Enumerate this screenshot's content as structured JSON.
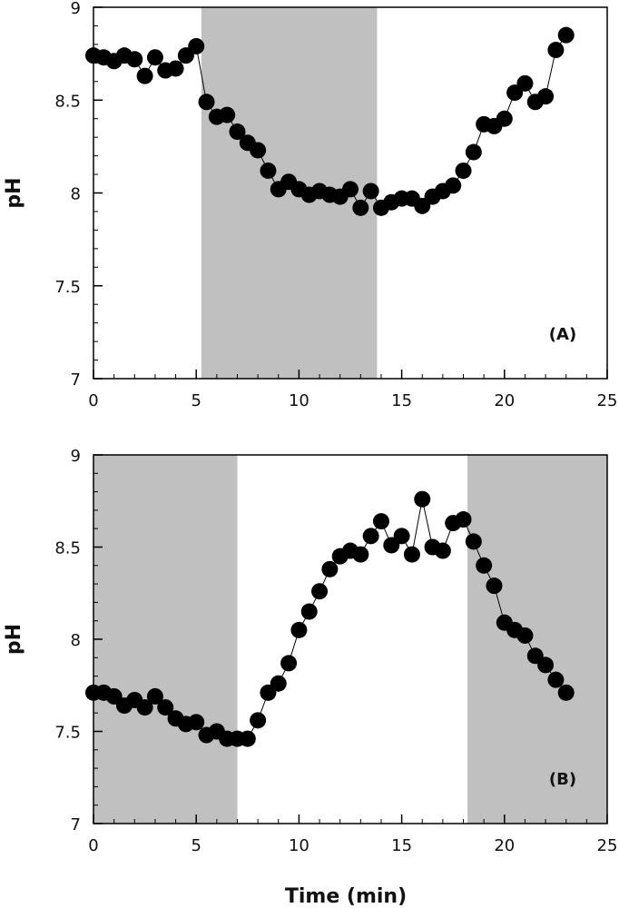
{
  "chart_data": [
    {
      "type": "scatter",
      "panel_label": "(A)",
      "xlabel": "",
      "ylabel": "pH",
      "xlim": [
        0,
        25
      ],
      "ylim": [
        7,
        9
      ],
      "xticks": [
        "0",
        "5",
        "10",
        "15",
        "20",
        "25"
      ],
      "yticks": [
        "7",
        "7.5",
        "8",
        "8.5",
        "9"
      ],
      "shaded_x_ranges": [
        [
          5.25,
          13.8
        ]
      ],
      "series": [
        {
          "x": [
            0,
            0.5,
            1,
            1.5,
            2,
            2.5,
            3,
            3.5,
            4,
            4.5,
            5,
            5.5,
            6,
            6.5,
            7,
            7.5,
            8,
            8.5,
            9,
            9.5,
            10,
            10.5,
            11,
            11.5,
            12,
            12.5,
            13,
            13.5,
            14,
            14.5,
            15,
            15.5,
            16,
            16.5,
            17,
            17.5,
            18,
            18.5,
            19,
            19.5,
            20,
            20.5,
            21,
            21.5,
            22,
            22.5,
            23
          ],
          "y": [
            8.74,
            8.73,
            8.71,
            8.74,
            8.72,
            8.63,
            8.73,
            8.66,
            8.67,
            8.74,
            8.79,
            8.49,
            8.41,
            8.42,
            8.33,
            8.27,
            8.23,
            8.12,
            8.02,
            8.06,
            8.02,
            7.99,
            8.01,
            7.99,
            7.98,
            8.02,
            7.92,
            8.01,
            7.92,
            7.95,
            7.97,
            7.97,
            7.93,
            7.98,
            8.01,
            8.04,
            8.12,
            8.22,
            8.37,
            8.36,
            8.4,
            8.54,
            8.59,
            8.49,
            8.52,
            8.77,
            8.85
          ]
        }
      ]
    },
    {
      "type": "scatter",
      "panel_label": "(B)",
      "xlabel": "Time (min)",
      "ylabel": "pH",
      "xlim": [
        0,
        25
      ],
      "ylim": [
        7,
        9
      ],
      "xticks": [
        "0",
        "5",
        "10",
        "15",
        "20",
        "25"
      ],
      "yticks": [
        "7",
        "7.5",
        "8",
        "8.5",
        "9"
      ],
      "shaded_x_ranges": [
        [
          0,
          7
        ],
        [
          18.2,
          25
        ]
      ],
      "series": [
        {
          "x": [
            0,
            0.5,
            1,
            1.5,
            2,
            2.5,
            3,
            3.5,
            4,
            4.5,
            5,
            5.5,
            6,
            6.5,
            7,
            7.5,
            8,
            8.5,
            9,
            9.5,
            10,
            10.5,
            11,
            11.5,
            12,
            12.5,
            13,
            13.5,
            14,
            14.5,
            15,
            15.5,
            16,
            16.5,
            17,
            17.5,
            18,
            18.5,
            19,
            19.5,
            20,
            20.5,
            21,
            21.5,
            22,
            22.5,
            23
          ],
          "y": [
            7.71,
            7.71,
            7.69,
            7.64,
            7.67,
            7.63,
            7.69,
            7.63,
            7.57,
            7.54,
            7.55,
            7.48,
            7.5,
            7.46,
            7.46,
            7.46,
            7.56,
            7.71,
            7.76,
            7.87,
            8.05,
            8.15,
            8.26,
            8.38,
            8.45,
            8.48,
            8.46,
            8.56,
            8.64,
            8.51,
            8.56,
            8.46,
            8.76,
            8.5,
            8.48,
            8.63,
            8.65,
            8.53,
            8.4,
            8.29,
            8.09,
            8.05,
            8.02,
            7.91,
            7.86,
            7.78,
            7.71
          ]
        }
      ]
    }
  ]
}
